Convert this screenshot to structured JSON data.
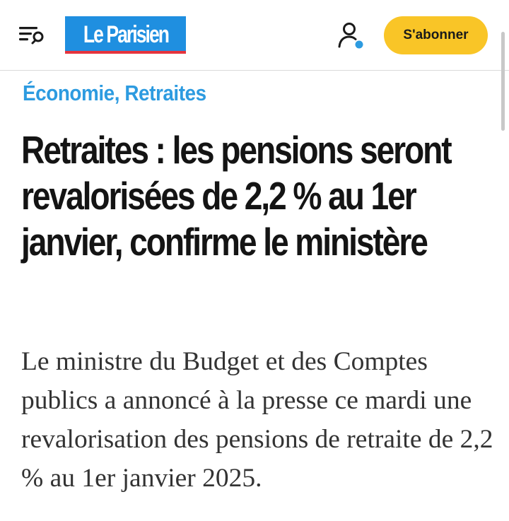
{
  "header": {
    "logo_text": "Le Parisien",
    "subscribe_label": "S'abonner",
    "menu_icon": "menu-search-icon",
    "account_icon": "user-account-icon",
    "brand_color": "#1f8fe0",
    "accent_color": "#f9c527"
  },
  "article": {
    "category": "Économie, Retraites",
    "title": "Retraites : les pensions seront revalorisées de 2,2 % au 1er janvier, confirme le ministère",
    "lead": "Le ministre du Budget et des Comptes publics a annoncé à la presse ce mardi une revalorisation des pensions de retraite de 2,2 % au 1er janvier 2025."
  }
}
